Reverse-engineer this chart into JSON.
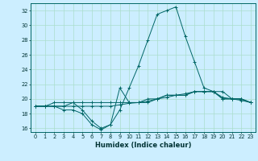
{
  "xlabel": "Humidex (Indice chaleur)",
  "bg_color": "#cceeff",
  "grid_color": "#aaddcc",
  "line_color": "#006666",
  "xlim": [
    -0.5,
    23.5
  ],
  "ylim": [
    15.5,
    33.0
  ],
  "yticks": [
    16,
    18,
    20,
    22,
    24,
    26,
    28,
    30,
    32
  ],
  "xticks": [
    0,
    1,
    2,
    3,
    4,
    5,
    6,
    7,
    8,
    9,
    10,
    11,
    12,
    13,
    14,
    15,
    16,
    17,
    18,
    19,
    20,
    21,
    22,
    23
  ],
  "lines": [
    [
      19,
      19,
      19,
      19,
      19.5,
      18.5,
      17,
      16,
      16.5,
      18.5,
      21.5,
      24.5,
      28,
      31.5,
      32,
      32.5,
      28.5,
      25,
      21.5,
      21,
      21,
      20,
      20,
      19.5
    ],
    [
      19,
      19,
      19,
      18.5,
      18.5,
      18,
      16.5,
      15.8,
      16.5,
      21.5,
      19.5,
      19.5,
      19.5,
      20,
      20.5,
      20.5,
      20.5,
      21,
      21,
      21,
      20,
      20,
      20,
      19.5
    ],
    [
      19,
      19,
      19.5,
      19.5,
      19.5,
      19.5,
      19.5,
      19.5,
      19.5,
      19.5,
      19.5,
      19.5,
      20,
      20,
      20.5,
      20.5,
      20.5,
      21,
      21,
      21,
      20,
      20,
      20,
      19.5
    ],
    [
      19,
      19,
      19,
      19,
      19,
      19,
      19,
      19,
      19,
      19.2,
      19.4,
      19.5,
      19.7,
      20,
      20.2,
      20.5,
      20.7,
      21,
      21,
      21,
      20.2,
      20,
      19.8,
      19.5
    ]
  ],
  "xlabel_fontsize": 6.0,
  "tick_fontsize": 4.8
}
